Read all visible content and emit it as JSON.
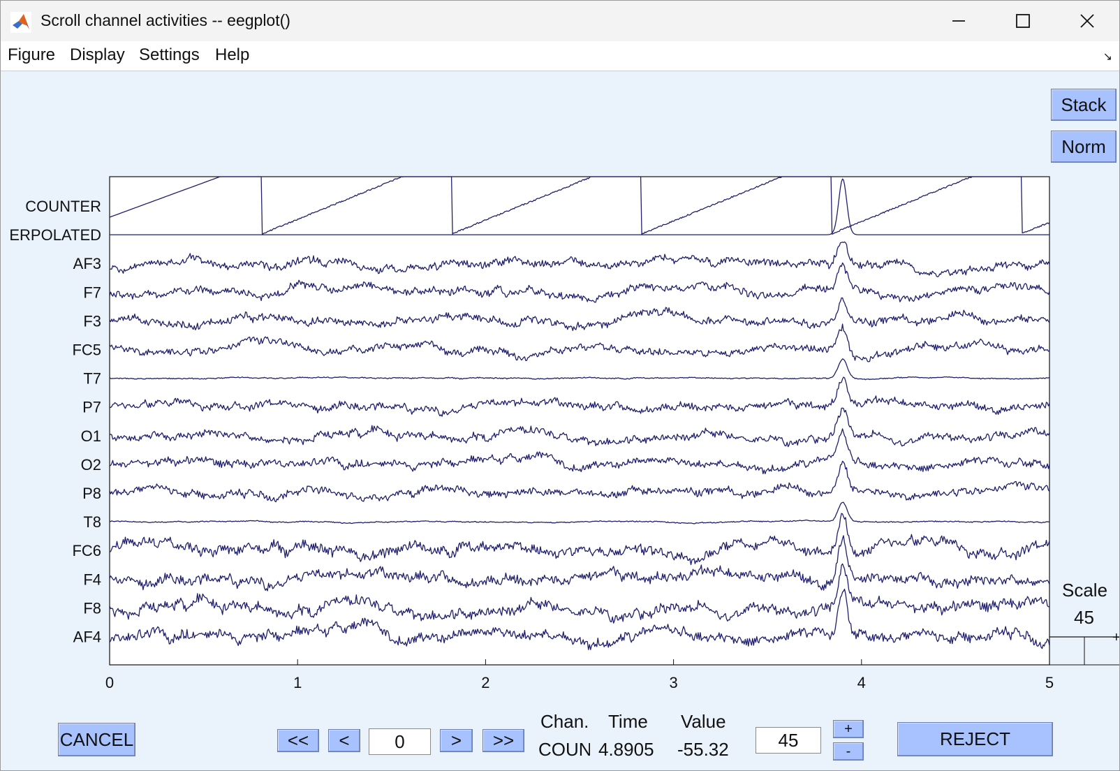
{
  "window": {
    "title": "Scroll channel activities -- eegplot()",
    "minimize_icon": "minimize-icon",
    "maximize_icon": "maximize-icon",
    "close_icon": "close-icon",
    "app_icon": "matlab-logo-icon"
  },
  "menu": {
    "items": [
      "Figure",
      "Display",
      "Settings",
      "Help"
    ],
    "corner_icon": "dock-arrow-icon"
  },
  "buttons": {
    "stack": "Stack",
    "norm": "Norm",
    "cancel": "CANCEL",
    "first": "<<",
    "prev": "<",
    "next": ">",
    "last": ">>",
    "plus": "+",
    "minus": "-",
    "reject": "REJECT"
  },
  "scale": {
    "label": "Scale",
    "value": "45",
    "input_value": "45"
  },
  "position_input": "0",
  "readout": {
    "chan_label": "Chan.",
    "time_label": "Time",
    "value_label": "Value",
    "chan_value": "COUN",
    "time_value": "4.8905",
    "value_value": "-55.32"
  },
  "chart_data": {
    "type": "line",
    "x_ticks": [
      "0",
      "1",
      "2",
      "3",
      "4",
      "5"
    ],
    "xlim": [
      0,
      5
    ],
    "channels": [
      "COUNTER",
      "ERPOLATED",
      "AF3",
      "F7",
      "F3",
      "FC5",
      "T7",
      "P7",
      "O1",
      "O2",
      "P8",
      "T8",
      "FC6",
      "F4",
      "F8",
      "AF4"
    ],
    "trace_color": "#1f1f6e",
    "counter_resets_s": [
      0.81,
      1.82,
      2.83,
      3.84,
      4.85
    ],
    "artifact_peak_s": 3.9,
    "scale_value": 45
  }
}
